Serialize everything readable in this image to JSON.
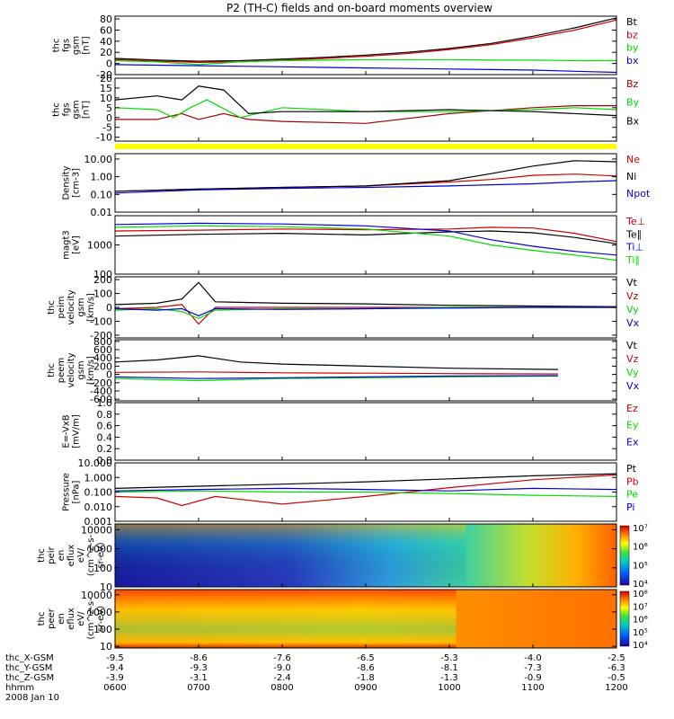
{
  "title": "P2 (TH-C) fields and on-board moments overview",
  "chart_data": {
    "type": "line",
    "title": "P2 (TH-C) fields and on-board moments overview",
    "time_range": [
      "0600",
      "1200"
    ],
    "panels": [
      {
        "id": "fgs_gsm",
        "ylabel": [
          "thc",
          "fgs",
          "gsm",
          "[nT]"
        ],
        "ylim": [
          -20,
          85
        ],
        "yscale": "linear",
        "yticks": [
          -20,
          0,
          20,
          40,
          60,
          80
        ],
        "series": [
          {
            "name": "Bt",
            "color": "#000000",
            "t": [
              0,
              0.5,
              1,
              1.5,
              2,
              2.5,
              3,
              3.5,
              4,
              4.5,
              5,
              5.5,
              6
            ],
            "values": [
              9,
              6,
              4,
              5,
              8,
              11,
              15,
              20,
              27,
              36,
              49,
              64,
              82
            ]
          },
          {
            "name": "bz",
            "color": "#d00000",
            "t": [
              0,
              0.5,
              1,
              1.5,
              2,
              2.5,
              3,
              3.5,
              4,
              4.5,
              5,
              5.5,
              6
            ],
            "values": [
              7,
              4,
              2,
              3,
              6,
              9,
              13,
              18,
              25,
              34,
              46,
              60,
              78
            ]
          },
          {
            "name": "by",
            "color": "#00dd00",
            "t": [
              0,
              0.5,
              1,
              1.5,
              2,
              2.5,
              3,
              3.5,
              4,
              4.5,
              5,
              5.5,
              6
            ],
            "values": [
              5,
              3,
              -2,
              3,
              5,
              6,
              7,
              7,
              7,
              6,
              6,
              5,
              5
            ]
          },
          {
            "name": "bx",
            "color": "#0000dd",
            "t": [
              0,
              0.5,
              1,
              1.5,
              2,
              2.5,
              3,
              3.5,
              4,
              4.5,
              5,
              5.5,
              6
            ],
            "values": [
              -2,
              -3,
              -4,
              -5,
              -6,
              -7,
              -8,
              -9,
              -10,
              -11,
              -12,
              -14,
              -16
            ]
          }
        ]
      },
      {
        "id": "fgs_gsm_zoom",
        "ylabel": [
          "thc",
          "fgs",
          "gsm",
          "[nT]"
        ],
        "ylim": [
          -12,
          20
        ],
        "yscale": "linear",
        "yticks": [
          -10,
          -5,
          0,
          5,
          10,
          15,
          20
        ],
        "series": [
          {
            "name": "Bz",
            "color": "#a00000",
            "t": [
              0,
              0.5,
              0.8,
              1,
              1.3,
              1.6,
              2,
              3,
              4,
              5,
              5.5,
              6
            ],
            "values": [
              -1,
              -1,
              2,
              -1,
              2,
              -1,
              -2,
              -3,
              2,
              5,
              6,
              6
            ]
          },
          {
            "name": "By",
            "color": "#00dd00",
            "t": [
              0,
              0.5,
              0.7,
              0.9,
              1.1,
              1.5,
              2,
              3,
              4,
              5,
              5.5,
              6
            ],
            "values": [
              5,
              4,
              0,
              5,
              9,
              0,
              5,
              3,
              3,
              4,
              5,
              4
            ]
          },
          {
            "name": "Bx",
            "color": "#000000",
            "t": [
              0,
              0.5,
              0.8,
              1,
              1.3,
              1.6,
              2,
              2.5,
              3,
              4,
              5,
              6
            ],
            "values": [
              9,
              11,
              9,
              16,
              14,
              2,
              3,
              3,
              3,
              4,
              3,
              1
            ]
          }
        ]
      },
      {
        "id": "density",
        "ylabel": [
          "Density",
          "[cm-3]"
        ],
        "ylim": [
          0.01,
          20
        ],
        "yscale": "log",
        "yticks": [
          0.01,
          0.1,
          1.0,
          10.0
        ],
        "yticklabels": [
          "0.01",
          "0.10",
          "1.00",
          "10.00"
        ],
        "series": [
          {
            "name": "Ne",
            "color": "#d00000",
            "t": [
              0,
              1,
              2,
              3,
              4,
              4.5,
              5,
              5.5,
              6
            ],
            "values": [
              0.15,
              0.2,
              0.25,
              0.3,
              0.5,
              0.7,
              1.2,
              1.4,
              1.1
            ]
          },
          {
            "name": "Ni",
            "color": "#000000",
            "t": [
              0,
              1,
              2,
              3,
              4,
              4.5,
              5,
              5.5,
              6
            ],
            "values": [
              0.15,
              0.2,
              0.25,
              0.3,
              0.6,
              1.5,
              4,
              8,
              7
            ]
          },
          {
            "name": "Npot",
            "color": "#0000dd",
            "t": [
              0,
              1,
              2,
              3,
              4,
              4.5,
              5,
              5.5,
              6
            ],
            "values": [
              0.12,
              0.18,
              0.22,
              0.25,
              0.3,
              0.35,
              0.4,
              0.5,
              0.6
            ]
          }
        ]
      },
      {
        "id": "temperature",
        "ylabel": [
          "magt3",
          "[eV]"
        ],
        "ylim": [
          100,
          10000
        ],
        "yscale": "log",
        "yticks": [
          100,
          1000
        ],
        "yticklabels": [
          "100",
          "1000"
        ],
        "series": [
          {
            "name": "Te⊥",
            "color": "#d00000",
            "t": [
              0,
              1,
              2,
              3,
              4,
              4.5,
              5,
              5.5,
              6
            ],
            "values": [
              3000,
              3200,
              3500,
              3300,
              3500,
              4000,
              3800,
              2500,
              1300
            ]
          },
          {
            "name": "Te∥",
            "color": "#000000",
            "t": [
              0,
              1,
              2,
              3,
              4,
              4.5,
              5,
              5.5,
              6
            ],
            "values": [
              2000,
              2300,
              2500,
              2200,
              2800,
              3000,
              2600,
              1800,
              1100
            ]
          },
          {
            "name": "Ti⊥",
            "color": "#0000dd",
            "t": [
              0,
              1,
              2,
              3,
              4,
              4.5,
              5,
              5.5,
              6
            ],
            "values": [
              5000,
              5500,
              5200,
              4500,
              3000,
              1500,
              900,
              600,
              450
            ]
          },
          {
            "name": "Ti∥",
            "color": "#00dd00",
            "t": [
              0,
              1,
              2,
              3,
              4,
              4.5,
              5,
              5.5,
              6
            ],
            "values": [
              4000,
              4500,
              4200,
              3500,
              2000,
              1000,
              650,
              450,
              300
            ]
          }
        ]
      },
      {
        "id": "peim_velocity",
        "ylabel": [
          "thc",
          "peim",
          "velocity",
          "gsm",
          "[km/s]"
        ],
        "ylim": [
          -220,
          220
        ],
        "yscale": "linear",
        "yticks": [
          -200,
          -100,
          0,
          100,
          200
        ],
        "series": [
          {
            "name": "Vt",
            "color": "#000000",
            "t": [
              0,
              0.5,
              0.8,
              1,
              1.2,
              2,
              3,
              4,
              5,
              6
            ],
            "values": [
              20,
              30,
              60,
              180,
              40,
              30,
              25,
              15,
              10,
              5
            ]
          },
          {
            "name": "Vz",
            "color": "#d00000",
            "t": [
              0,
              0.5,
              0.8,
              1,
              1.2,
              2,
              3,
              4,
              5,
              6
            ],
            "values": [
              -10,
              0,
              20,
              -120,
              0,
              0,
              0,
              0,
              0,
              0
            ]
          },
          {
            "name": "Vy",
            "color": "#00dd00",
            "t": [
              0,
              0.5,
              0.8,
              1,
              1.2,
              2,
              3,
              4,
              5,
              6
            ],
            "values": [
              -20,
              -10,
              -30,
              -80,
              -20,
              -10,
              -10,
              0,
              0,
              0
            ]
          },
          {
            "name": "Vx",
            "color": "#0000dd",
            "t": [
              0,
              0.5,
              0.8,
              1,
              1.2,
              2,
              3,
              4,
              5,
              6
            ],
            "values": [
              -10,
              -20,
              -10,
              -60,
              -10,
              -15,
              -10,
              -5,
              0,
              0
            ]
          }
        ]
      },
      {
        "id": "peem_velocity",
        "ylabel": [
          "thc",
          "peem",
          "velocity",
          "gsm",
          "[km/s]"
        ],
        "ylim": [
          -640,
          840
        ],
        "yscale": "linear",
        "yticks": [
          -600,
          -400,
          -200,
          0,
          200,
          400,
          600,
          800
        ],
        "yticklabels": [
          "-600",
          "-400",
          "-200",
          "0",
          "200",
          "400",
          "600",
          "800"
        ],
        "series": [
          {
            "name": "Vt",
            "color": "#000000",
            "t": [
              0,
              0.5,
              1,
              1.5,
              2,
              3,
              4,
              5.3
            ],
            "values": [
              300,
              350,
              450,
              300,
              250,
              200,
              150,
              120
            ]
          },
          {
            "name": "Vz",
            "color": "#d00000",
            "t": [
              0,
              1,
              2,
              3,
              4,
              5.3
            ],
            "values": [
              50,
              60,
              40,
              30,
              20,
              10
            ]
          },
          {
            "name": "Vy",
            "color": "#00dd00",
            "t": [
              0,
              1,
              2,
              3,
              4,
              5.3
            ],
            "values": [
              -100,
              -150,
              -100,
              -80,
              -60,
              -40
            ]
          },
          {
            "name": "Vx",
            "color": "#0000dd",
            "t": [
              0,
              1,
              2,
              3,
              4,
              5.3
            ],
            "values": [
              -60,
              -100,
              -80,
              -60,
              -40,
              -30
            ]
          }
        ],
        "data_end_t": 5.3
      },
      {
        "id": "efield",
        "ylabel": [
          "E=-VxB",
          "[mV/m]"
        ],
        "ylim": [
          0,
          1.0
        ],
        "yscale": "linear",
        "yticks": [
          0,
          0.2,
          0.4,
          0.6,
          0.8,
          1.0
        ],
        "yticklabels": [
          "0.0",
          "0.2",
          "0.4",
          "0.6",
          "0.8",
          "1.0"
        ],
        "series": [
          {
            "name": "Ez",
            "color": "#d00000",
            "t": [],
            "values": []
          },
          {
            "name": "Ey",
            "color": "#00dd00",
            "t": [],
            "values": []
          },
          {
            "name": "Ex",
            "color": "#0000dd",
            "t": [],
            "values": []
          }
        ]
      },
      {
        "id": "pressure",
        "ylabel": [
          "Pressure",
          "[nPa]"
        ],
        "ylim": [
          0.001,
          10
        ],
        "yscale": "log",
        "yticks": [
          0.001,
          0.01,
          0.1,
          1.0,
          10.0
        ],
        "yticklabels": [
          "0.001",
          "0.010",
          "0.100",
          "1.000",
          "10.000"
        ],
        "series": [
          {
            "name": "Pt",
            "color": "#000000",
            "t": [
              0,
              1,
              2,
              3,
              4,
              5,
              6
            ],
            "values": [
              0.18,
              0.25,
              0.35,
              0.5,
              0.8,
              1.3,
              1.8
            ]
          },
          {
            "name": "Pb",
            "color": "#d00000",
            "t": [
              0,
              0.5,
              0.8,
              1.2,
              2,
              3,
              4,
              5,
              6
            ],
            "values": [
              0.05,
              0.04,
              0.012,
              0.05,
              0.015,
              0.05,
              0.2,
              0.7,
              1.5
            ]
          },
          {
            "name": "Pe",
            "color": "#00dd00",
            "t": [
              0,
              1,
              2,
              3,
              4,
              5,
              6
            ],
            "values": [
              0.1,
              0.12,
              0.1,
              0.1,
              0.08,
              0.06,
              0.05
            ]
          },
          {
            "name": "Pi",
            "color": "#0000dd",
            "t": [
              0,
              1,
              2,
              3,
              4,
              5,
              6
            ],
            "values": [
              0.12,
              0.15,
              0.18,
              0.15,
              0.12,
              0.18,
              0.15
            ]
          }
        ]
      },
      {
        "id": "peir_spectrogram",
        "type": "heatmap",
        "ylabel": [
          "thc",
          "peir",
          "en",
          "eflux",
          "eV/",
          "(cm^2-s-",
          "sr-eV)"
        ],
        "ylim": [
          10,
          20000
        ],
        "yscale": "log",
        "yticks": [
          10,
          100,
          1000,
          10000
        ],
        "colorbar": {
          "range": [
            10000,
            10000000
          ],
          "ticks": [
            "10⁴",
            "10⁵",
            "10⁶",
            "10⁷"
          ]
        }
      },
      {
        "id": "peer_spectrogram",
        "type": "heatmap",
        "ylabel": [
          "thc",
          "peer",
          "en",
          "eflux",
          "eV/",
          "(cm^2-s-",
          "sr-eV)"
        ],
        "ylim": [
          8,
          20000
        ],
        "yscale": "log",
        "yticks": [
          10,
          100,
          1000,
          10000
        ],
        "colorbar": {
          "range": [
            10000,
            100000000
          ],
          "ticks": [
            "10⁴",
            "10⁵",
            "10⁶",
            "10⁷",
            "10⁸"
          ]
        }
      }
    ],
    "x_axis": {
      "rows": [
        {
          "label": "thc_X-GSM",
          "values": [
            "-9.5",
            "-8.6",
            "-7.6",
            "-6.5",
            "-5.3",
            "-4.0",
            "-2.5"
          ]
        },
        {
          "label": "thc_Y-GSM",
          "values": [
            "-9.4",
            "-9.3",
            "-9.0",
            "-8.6",
            "-8.1",
            "-7.3",
            "-6.3"
          ]
        },
        {
          "label": "thc_Z-GSM",
          "values": [
            "-3.9",
            "-3.1",
            "-2.4",
            "-1.8",
            "-1.3",
            "-0.9",
            "-0.5"
          ]
        },
        {
          "label": "hhmm",
          "values": [
            "0600",
            "0700",
            "0800",
            "0900",
            "1000",
            "1100",
            "1200"
          ]
        }
      ],
      "date": "2008 Jan 10"
    }
  }
}
